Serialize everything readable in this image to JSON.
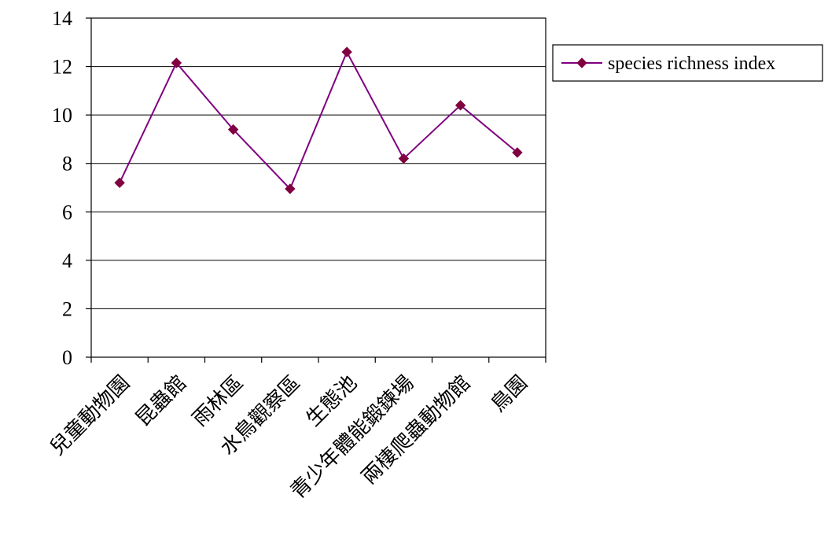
{
  "chart_data": {
    "type": "line",
    "categories": [
      "兒童動物園",
      "昆蟲館",
      "雨林區",
      "水鳥觀察區",
      "生態池",
      "青少年體能鍛鍊場",
      "兩棲爬蟲動物館",
      "鳥園"
    ],
    "series": [
      {
        "name": "species richness index",
        "values": [
          7.2,
          12.15,
          9.4,
          6.95,
          12.6,
          8.2,
          10.4,
          8.45
        ]
      }
    ],
    "ylim": [
      0,
      14
    ],
    "yticks": [
      0,
      2,
      4,
      6,
      8,
      10,
      12,
      14
    ],
    "grid": true,
    "legend": "right",
    "colors": {
      "line": "#800080",
      "marker": "#800040"
    }
  }
}
